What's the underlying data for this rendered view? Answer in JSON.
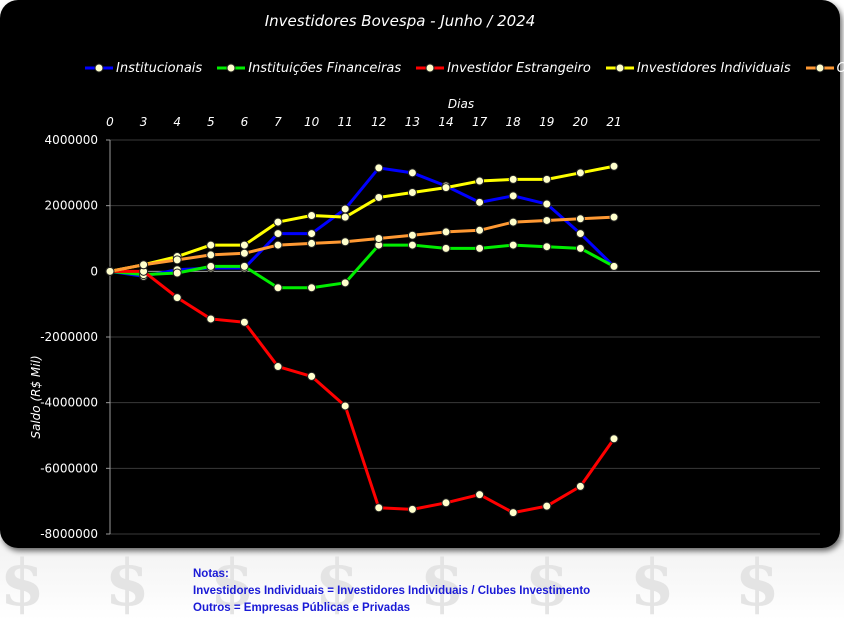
{
  "chart_data": {
    "type": "line",
    "title": "Investidores Bovespa     -     Junho / 2024",
    "xlabel": "Dias",
    "ylabel": "Saldo (R$ Mil)",
    "x_axis_position": "top",
    "categories": [
      "0",
      "3",
      "4",
      "5",
      "6",
      "7",
      "10",
      "11",
      "12",
      "13",
      "14",
      "17",
      "18",
      "19",
      "20",
      "21"
    ],
    "ylim": [
      -8000000,
      4000000
    ],
    "yticks": [
      4000000,
      2000000,
      0,
      -2000000,
      -4000000,
      -6000000,
      -8000000
    ],
    "ytick_labels": [
      "4000000",
      "2000000",
      "0",
      "-2000000",
      "-4000000",
      "-6000000",
      "-8000000"
    ],
    "legend_position": "top",
    "series": [
      {
        "name": "Institucionais",
        "color": "#0000ff",
        "values": [
          0,
          -150000,
          50000,
          100000,
          100000,
          1150000,
          1150000,
          1900000,
          3150000,
          3000000,
          2600000,
          2100000,
          2300000,
          2050000,
          1150000,
          150000
        ]
      },
      {
        "name": "Instituições Financeiras",
        "color": "#00ee00",
        "values": [
          0,
          -100000,
          -50000,
          150000,
          150000,
          -500000,
          -500000,
          -350000,
          800000,
          800000,
          700000,
          700000,
          800000,
          750000,
          700000,
          150000
        ]
      },
      {
        "name": "Investidor Estrangeiro",
        "color": "#ff0000",
        "values": [
          0,
          0,
          -800000,
          -1450000,
          -1550000,
          -2900000,
          -3200000,
          -4100000,
          -7200000,
          -7250000,
          -7050000,
          -6800000,
          -7350000,
          -7150000,
          -6550000,
          -5100000
        ]
      },
      {
        "name": "Investidores Individuais",
        "color": "#ffff00",
        "values": [
          0,
          200000,
          450000,
          800000,
          800000,
          1500000,
          1700000,
          1650000,
          2250000,
          2400000,
          2550000,
          2750000,
          2800000,
          2800000,
          3000000,
          3200000
        ]
      },
      {
        "name": "Outros",
        "color": "#ff9933",
        "values": [
          0,
          200000,
          350000,
          500000,
          550000,
          800000,
          850000,
          900000,
          1000000,
          1100000,
          1200000,
          1250000,
          1500000,
          1550000,
          1600000,
          1650000
        ]
      }
    ]
  },
  "notes": {
    "heading": "Notas:",
    "line1": "Investidores Individuais = Investidores Individuais / Clubes Investimento",
    "line2": "Outros = Empresas Públicas e Privadas"
  }
}
